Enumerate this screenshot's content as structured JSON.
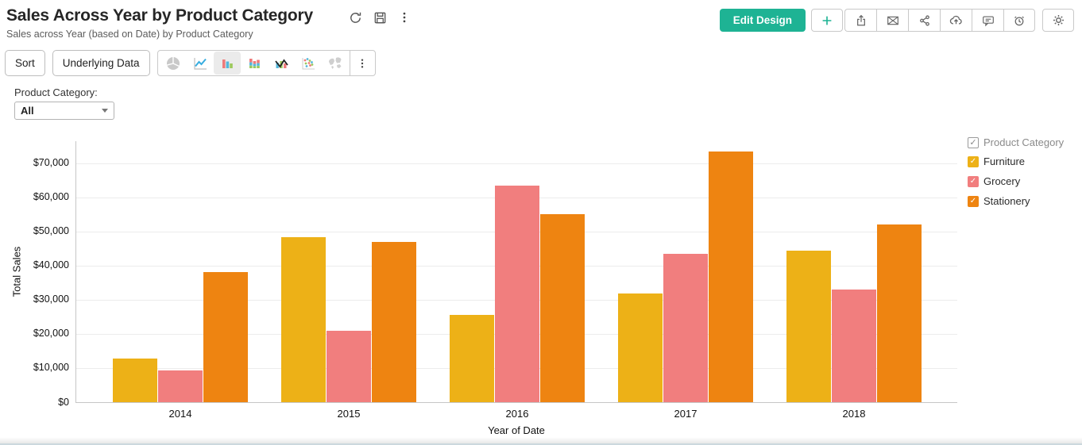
{
  "header": {
    "title": "Sales Across Year by Product Category",
    "subtitle": "Sales across Year (based on Date) by Product Category",
    "edit_design_label": "Edit Design",
    "accent_color": "#1eb394",
    "title_icons": [
      "refresh-icon",
      "save-icon",
      "more-vertical-icon"
    ],
    "action_icons": [
      "add-icon",
      "export-icon",
      "email-icon",
      "share-icon",
      "publish-icon",
      "comment-icon",
      "alert-icon",
      "settings-icon"
    ]
  },
  "toolbar": {
    "sort_label": "Sort",
    "underlying_data_label": "Underlying Data",
    "chart_type_icons": [
      "pie",
      "line",
      "bar",
      "stacked-bar",
      "combo",
      "scatter",
      "map"
    ],
    "selected_chart_type": "bar"
  },
  "filter": {
    "label": "Product Category:",
    "value": "All"
  },
  "legend": {
    "title": "Product Category",
    "items": [
      {
        "label": "Furniture",
        "color": "#edb117",
        "checked": true
      },
      {
        "label": "Grocery",
        "color": "#f17e7e",
        "checked": true
      },
      {
        "label": "Stationery",
        "color": "#ee8411",
        "checked": true
      }
    ]
  },
  "chart_data": {
    "type": "bar",
    "title": "Sales Across Year by Product Category",
    "categories": [
      "2014",
      "2015",
      "2016",
      "2017",
      "2018"
    ],
    "series": [
      {
        "name": "Furniture",
        "color": "#edb117",
        "values": [
          12800,
          48300,
          25500,
          31800,
          44300
        ]
      },
      {
        "name": "Grocery",
        "color": "#f17e7e",
        "values": [
          9400,
          21000,
          63500,
          43400,
          33000
        ]
      },
      {
        "name": "Stationery",
        "color": "#ee8411",
        "values": [
          38100,
          46900,
          55000,
          73500,
          52000
        ]
      }
    ],
    "xlabel": "Year of Date",
    "ylabel": "Total Sales",
    "ylim": [
      0,
      75000
    ],
    "ytick_step": 10000,
    "ytick_format": "$#,###",
    "grid": true,
    "legend_position": "right"
  }
}
